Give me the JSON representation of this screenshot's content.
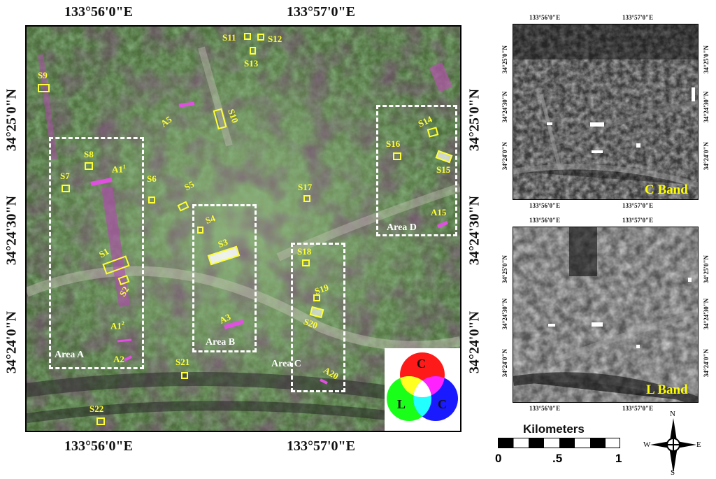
{
  "main_map": {
    "top_lon": [
      "133°56'0\"E",
      "133°57'0\"E"
    ],
    "bottom_lon": [
      "133°56'0\"E",
      "133°57'0\"E"
    ],
    "left_lat": [
      "34°25'0\"N",
      "34°24'30\"N",
      "34°24'0\"N"
    ],
    "right_lat": [
      "34°25'0\"N",
      "34°24'30\"N",
      "34°24'0\"N"
    ],
    "sites": [
      "S1",
      "S2",
      "S3",
      "S4",
      "S5",
      "S6",
      "S7",
      "S8",
      "S9",
      "S10",
      "S11",
      "S12",
      "S13",
      "S14",
      "S15",
      "S16",
      "S17",
      "S18",
      "S19",
      "S20",
      "S21",
      "S22"
    ],
    "anomalies": {
      "a1_1": "A1",
      "a1_1_sup": "1",
      "a1_2": "A1",
      "a1_2_sup": "2",
      "a2": "A2",
      "a3": "A3",
      "a5": "A5",
      "a15": "A15",
      "a20": "A20"
    },
    "areas": [
      "Area A",
      "Area B",
      "Area C",
      "Area D"
    ]
  },
  "legend": {
    "c_top": "C",
    "l_left": "L",
    "c_right": "C",
    "colors": {
      "red": "#ff1a1a",
      "green": "#1aff1a",
      "blue": "#1a1aff"
    }
  },
  "c_band": {
    "label": "C Band",
    "top_lon": [
      "133°56'0\"E",
      "133°57'0\"E"
    ],
    "bottom_lon": [
      "133°56'0\"E",
      "133°57'0\"E"
    ],
    "left_lat": [
      "34°25'0\"N",
      "34°24'30\"N",
      "34°24'0\"N"
    ],
    "right_lat": [
      "34°25'0\"N",
      "34°24'30\"N",
      "34°24'0\"N"
    ]
  },
  "l_band": {
    "label": "L Band",
    "top_lon": [
      "133°56'0\"E",
      "133°57'0\"E"
    ],
    "bottom_lon": [
      "133°56'0\"E",
      "133°57'0\"E"
    ],
    "left_lat": [
      "34°25'0\"N",
      "34°24'30\"N",
      "34°24'0\"N"
    ],
    "right_lat": [
      "34°25'0\"N",
      "34°24'30\"N",
      "34°24'0\"N"
    ]
  },
  "scale_bar": {
    "title": "Kilometers",
    "ticks": [
      "0",
      ".5",
      "1"
    ]
  },
  "north_arrow": {
    "n": "N",
    "s": "S",
    "e": "E",
    "w": "W"
  }
}
